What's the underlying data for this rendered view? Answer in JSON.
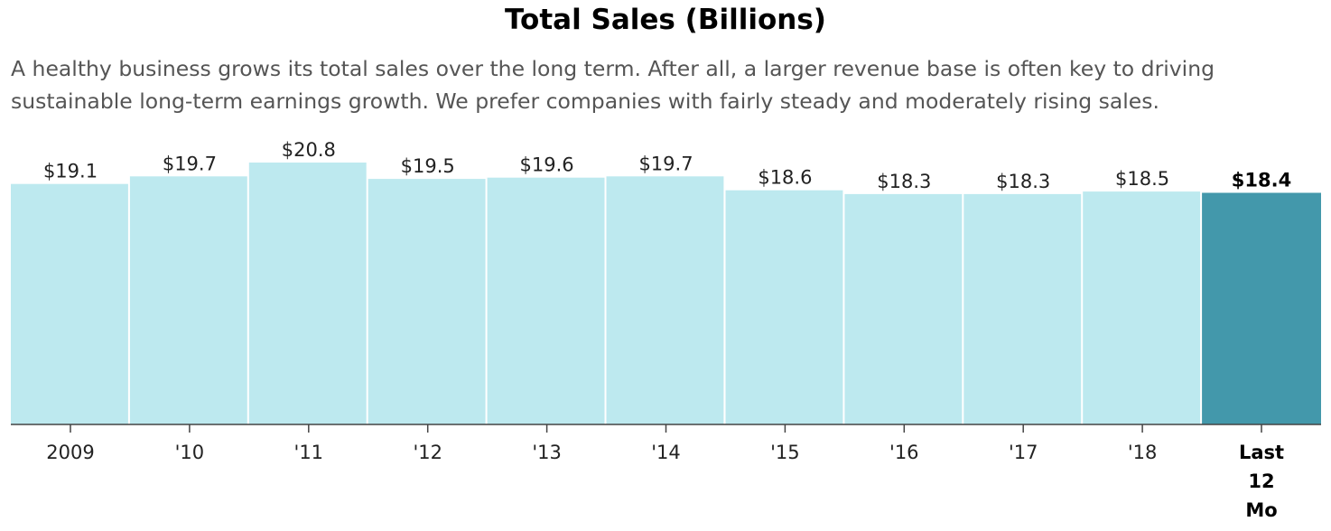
{
  "chart_data": {
    "type": "bar",
    "title": "Total Sales (Billions)",
    "description": "A healthy business grows its total sales over the long term. After all, a larger revenue base is often key to driving sustainable long-term earnings growth. We prefer companies with fairly steady and moderately rising sales.",
    "categories": [
      "2009",
      "'10",
      "'11",
      "'12",
      "'13",
      "'14",
      "'15",
      "'16",
      "'17",
      "'18",
      "Last 12 Mo"
    ],
    "values": [
      19.1,
      19.7,
      20.8,
      19.5,
      19.6,
      19.7,
      18.6,
      18.3,
      18.3,
      18.5,
      18.4
    ],
    "value_labels": [
      "$19.1",
      "$19.7",
      "$20.8",
      "$19.5",
      "$19.6",
      "$19.7",
      "$18.6",
      "$18.3",
      "$18.3",
      "$18.5",
      "$18.4"
    ],
    "highlight_index": 10,
    "ylim": [
      0,
      20.8
    ],
    "grid": false,
    "legend": "none",
    "colors": {
      "bar": "#bde9ef",
      "bar_highlight": "#4398ab",
      "axis": "#444444"
    }
  }
}
